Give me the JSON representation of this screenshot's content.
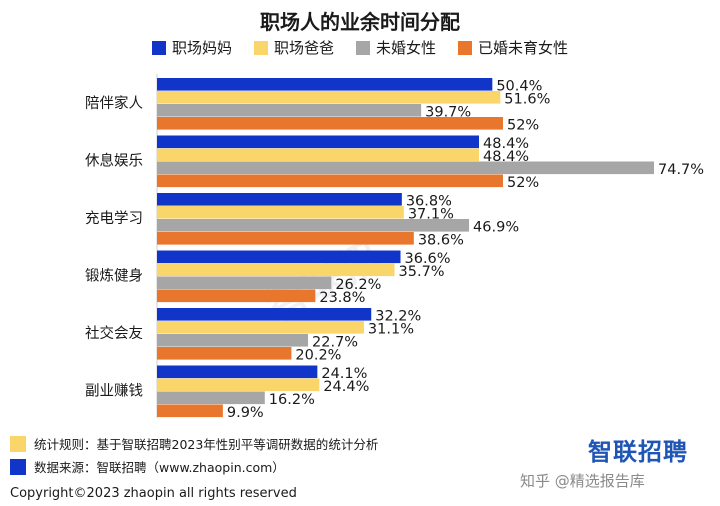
{
  "title": "职场人的业余时间分配",
  "colors": {
    "moms": "#1035c8",
    "dads": "#f9d56a",
    "single_women": "#a6a6a6",
    "married_no_kids": "#e8762d"
  },
  "chart_data": {
    "type": "bar",
    "orientation": "horizontal",
    "title": "职场人的业余时间分配",
    "categories": [
      "陪伴家人",
      "休息娱乐",
      "充电学习",
      "锻炼健身",
      "社交会友",
      "副业赚钱"
    ],
    "series": [
      {
        "name": "职场妈妈",
        "color": "#1035c8",
        "values": [
          50.4,
          48.4,
          36.8,
          36.6,
          32.2,
          24.1
        ],
        "labels": [
          "50.4%",
          "48.4%",
          "36.8%",
          "36.6%",
          "32.2%",
          "24.1%"
        ]
      },
      {
        "name": "职场爸爸",
        "color": "#f9d56a",
        "values": [
          51.6,
          48.4,
          37.1,
          35.7,
          31.1,
          24.4
        ],
        "labels": [
          "51.6%",
          "48.4%",
          "37.1%",
          "35.7%",
          "31.1%",
          "24.4%"
        ]
      },
      {
        "name": "未婚女性",
        "color": "#a6a6a6",
        "values": [
          39.7,
          74.7,
          46.9,
          26.2,
          22.7,
          16.2
        ],
        "labels": [
          "39.7%",
          "74.7%",
          "46.9%",
          "26.2%",
          "22.7%",
          "16.2%"
        ]
      },
      {
        "name": "已婚未育女性",
        "color": "#e8762d",
        "values": [
          52,
          52,
          38.6,
          23.8,
          20.2,
          9.9
        ],
        "labels": [
          "52%",
          "52%",
          "38.6%",
          "23.8%",
          "20.2%",
          "9.9%"
        ]
      }
    ],
    "xlim": [
      0,
      80
    ],
    "legend_position": "top",
    "grid": false
  },
  "notes": {
    "rule": "统计规则：基于智联招聘2023年性别平等调研数据的统计分析",
    "source": "数据来源：智联招聘（www.zhaopin.com）"
  },
  "brand": "智联招聘",
  "watermark_text": "智联招",
  "zhihu": "知乎 @精选报告库",
  "copyright": "Copyright©2023 zhaopin all rights reserved"
}
